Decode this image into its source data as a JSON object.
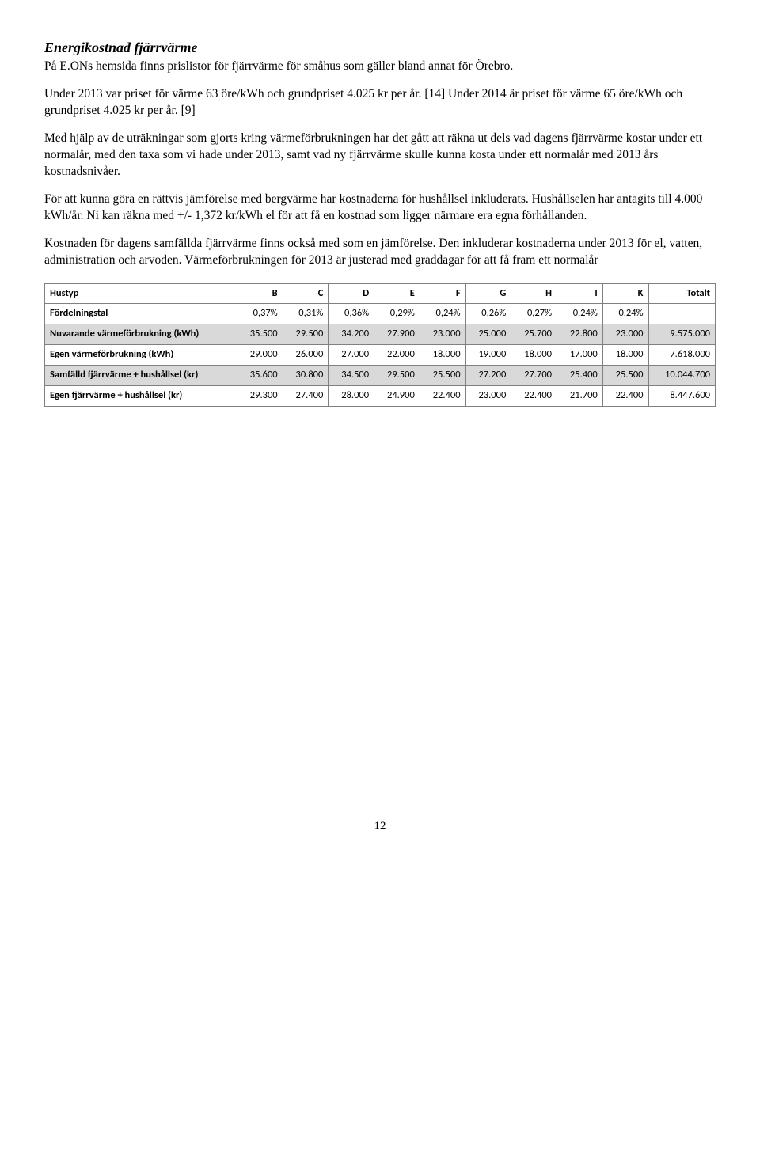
{
  "title": "Energikostnad fjärrvärme",
  "p1": "På E.ONs hemsida finns prislistor för fjärrvärme för småhus som gäller bland annat för Örebro.",
  "p2": "Under 2013 var priset för värme 63 öre/kWh och grundpriset 4.025 kr per år. [14] Under 2014 är priset för värme 65 öre/kWh och grundpriset 4.025 kr per år. [9]",
  "p3": "Med hjälp av de uträkningar som gjorts kring värmeförbrukningen har det gått att räkna ut dels vad dagens fjärrvärme kostar under ett normalår, med den taxa som vi hade under 2013, samt vad ny fjärrvärme skulle kunna kosta under ett normalår med 2013 års kostnadsnivåer.",
  "p4": "För att kunna göra en rättvis jämförelse med bergvärme har kostnaderna för hushållsel inkluderats. Hushållselen har antagits till 4.000 kWh/år. Ni kan räkna med +/- 1,372 kr/kWh el för att få en kostnad som ligger närmare era egna förhållanden.",
  "p5": "Kostnaden för dagens samfällda fjärrvärme finns också med som en jämförelse. Den inkluderar kostnaderna under 2013 för el, vatten, administration och arvoden. Värmeförbrukningen för 2013 är justerad med graddagar för att få fram ett normalår",
  "table": {
    "head": [
      "Hustyp",
      "B",
      "C",
      "D",
      "E",
      "F",
      "G",
      "H",
      "I",
      "K",
      "Totalt"
    ],
    "rows": [
      {
        "label": "Fördelningstal",
        "cells": [
          "0,37%",
          "0,31%",
          "0,36%",
          "0,29%",
          "0,24%",
          "0,26%",
          "0,27%",
          "0,24%",
          "0,24%",
          ""
        ],
        "shaded": false
      },
      {
        "label": "Nuvarande värmeförbrukning (kWh)",
        "cells": [
          "35.500",
          "29.500",
          "34.200",
          "27.900",
          "23.000",
          "25.000",
          "25.700",
          "22.800",
          "23.000",
          "9.575.000"
        ],
        "shaded": true
      },
      {
        "label": "Egen värmeförbrukning (kWh)",
        "cells": [
          "29.000",
          "26.000",
          "27.000",
          "22.000",
          "18.000",
          "19.000",
          "18.000",
          "17.000",
          "18.000",
          "7.618.000"
        ],
        "shaded": false
      },
      {
        "label": "Samfälld fjärrvärme + hushållsel (kr)",
        "cells": [
          "35.600",
          "30.800",
          "34.500",
          "29.500",
          "25.500",
          "27.200",
          "27.700",
          "25.400",
          "25.500",
          "10.044.700"
        ],
        "shaded": true
      },
      {
        "label": "Egen fjärrvärme + hushållsel (kr)",
        "cells": [
          "29.300",
          "27.400",
          "28.000",
          "24.900",
          "22.400",
          "23.000",
          "22.400",
          "21.700",
          "22.400",
          "8.447.600"
        ],
        "shaded": false
      }
    ]
  },
  "pagenum": "12"
}
